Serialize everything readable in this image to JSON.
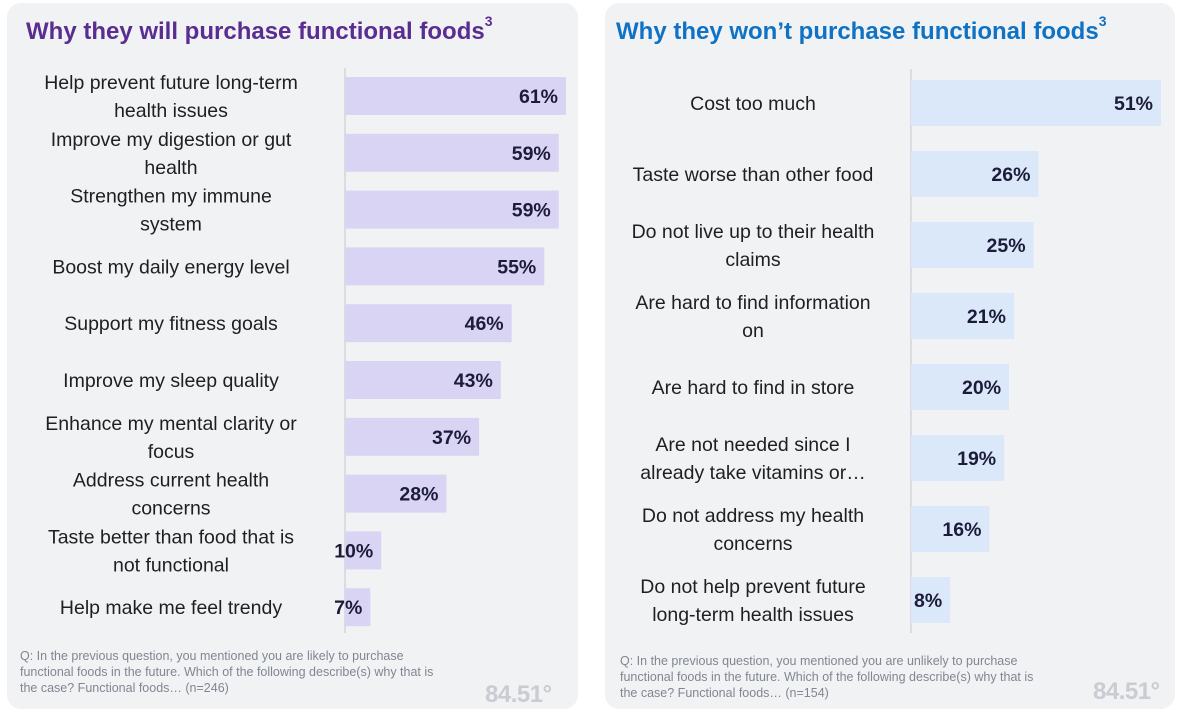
{
  "chart_data": [
    {
      "type": "bar",
      "orientation": "horizontal",
      "title": "Why they will purchase functional foods",
      "title_superscript": "3",
      "categories": [
        [
          "Help prevent future long-term",
          "health issues"
        ],
        [
          "Improve my digestion or gut",
          "health"
        ],
        [
          "Strengthen my immune",
          "system"
        ],
        [
          "Boost my daily energy level"
        ],
        [
          "Support my fitness goals"
        ],
        [
          "Improve my sleep quality"
        ],
        [
          "Enhance my mental clarity or",
          "focus"
        ],
        [
          "Address current health",
          "concerns"
        ],
        [
          "Taste better than food that is",
          "not functional"
        ],
        [
          "Help make me feel trendy"
        ]
      ],
      "values": [
        61,
        59,
        59,
        55,
        46,
        43,
        37,
        28,
        10,
        7
      ],
      "value_labels": [
        "61%",
        "59%",
        "59%",
        "55%",
        "46%",
        "43%",
        "37%",
        "28%",
        "10%",
        "7%"
      ],
      "bar_color": "#d9d4f4",
      "footnote": "Q: In the previous question, you mentioned you are likely to purchase functional foods in the future.  Which of the following describe(s) why that is the case? Functional foods… (n=246)"
    },
    {
      "type": "bar",
      "orientation": "horizontal",
      "title": "Why they won’t purchase functional foods",
      "title_superscript": "3",
      "categories": [
        [
          "Cost too much"
        ],
        [
          "Taste worse than other food"
        ],
        [
          "Do not live up to their health",
          "claims"
        ],
        [
          "Are hard to find information",
          "on"
        ],
        [
          "Are hard to find in store"
        ],
        [
          "Are not needed since I",
          "already take vitamins or…"
        ],
        [
          "Do not address my health",
          "concerns"
        ],
        [
          "Do not help prevent future",
          "long-term health issues"
        ]
      ],
      "values": [
        51,
        26,
        25,
        21,
        20,
        19,
        16,
        8
      ],
      "value_labels": [
        "51%",
        "26%",
        "25%",
        "21%",
        "20%",
        "19%",
        "16%",
        "8%"
      ],
      "bar_color": "#dbe8fa",
      "footnote": "Q: In the previous question, you mentioned you are unlikely to purchase functional foods in the future.  Which of the following describe(s) why that is the case? Functional foods… (n=154)"
    }
  ],
  "logo": {
    "text": "84.51°"
  }
}
